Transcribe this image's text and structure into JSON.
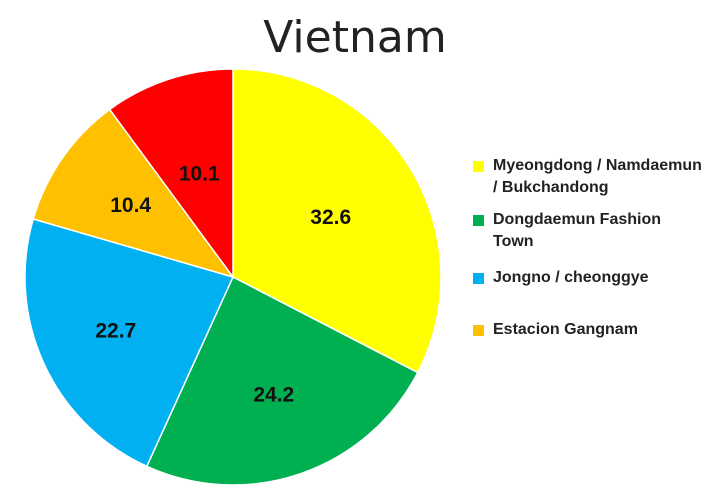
{
  "chart_data": {
    "type": "pie",
    "title": "Vietnam",
    "slices": [
      {
        "label": "Myeongdong / Namdaemun / Bukchandong",
        "value": 32.6,
        "value_label": "32.6",
        "color": "#FFFF00"
      },
      {
        "label": "Dongdaemun Fashion Town",
        "value": 24.2,
        "value_label": "24.2",
        "color": "#00B050"
      },
      {
        "label": "Jongno / cheonggye",
        "value": 22.7,
        "value_label": "22.7",
        "color": "#00B0F0"
      },
      {
        "label": "Estacion Gangnam",
        "value": 10.4,
        "value_label": "10.4",
        "color": "#FFC000"
      },
      {
        "label": "",
        "value": 10.1,
        "value_label": "10.1",
        "color": "#FF0000"
      }
    ],
    "legend": {
      "position": "right",
      "entries": [
        {
          "label": "Myeongdong / Namdaemun / Bukchandong",
          "color": "#FFFF00"
        },
        {
          "label": "Dongdaemun Fashion Town",
          "color": "#00B050"
        },
        {
          "label": "Jongno / cheonggye",
          "color": "#00B0F0"
        },
        {
          "label": "Estacion Gangnam",
          "color": "#FFC000"
        }
      ]
    }
  }
}
